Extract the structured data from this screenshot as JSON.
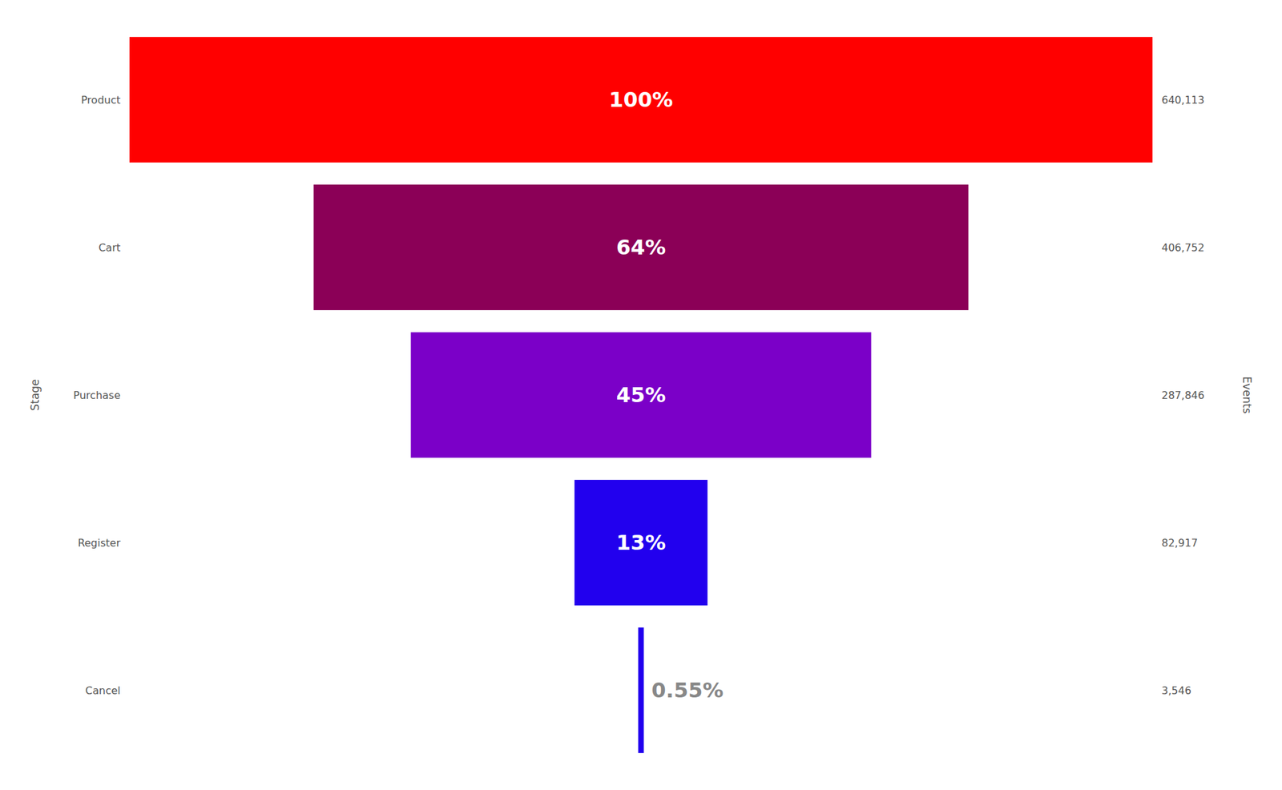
{
  "chart_data": {
    "type": "funnel",
    "categories": [
      "Product",
      "Cart",
      "Purchase",
      "Register",
      "Cancel"
    ],
    "values": [
      100,
      64,
      45,
      13,
      0.55
    ],
    "value_labels": [
      "100%",
      "64%",
      "45%",
      "13%",
      "0.55%"
    ],
    "events": [
      {
        "value": 640113,
        "label": "640,113"
      },
      {
        "value": 406752,
        "label": "406,752"
      },
      {
        "value": 287846,
        "label": "287,846"
      },
      {
        "value": 82917,
        "label": "82,917"
      },
      {
        "value": 3546,
        "label": "3,546"
      }
    ],
    "colors": [
      "#ff0000",
      "#8b0057",
      "#7b00c8",
      "#2200ee",
      "#2200ee"
    ],
    "xlim": [
      0,
      100
    ],
    "ylabel": "Stage",
    "y2label": "Events",
    "data_labels": true,
    "tick_labels": "y"
  }
}
